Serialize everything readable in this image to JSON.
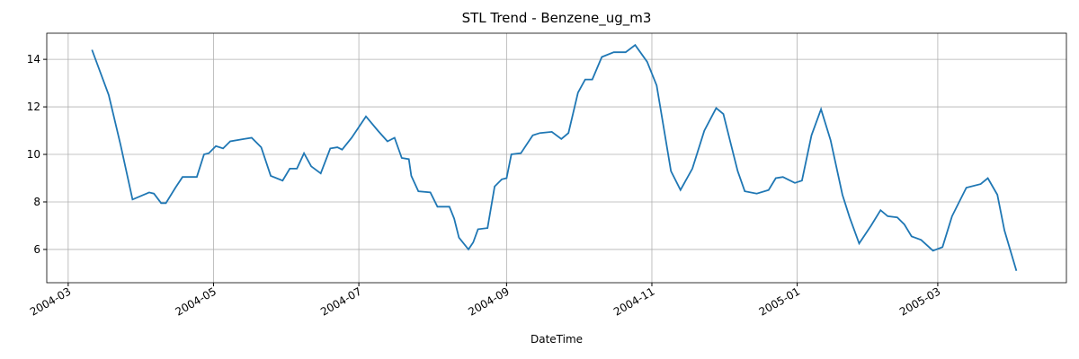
{
  "chart_data": {
    "type": "line",
    "title": "STL Trend - Benzene_ug_m3",
    "xlabel": "DateTime",
    "x": [
      "2004-03-11",
      "2004-03-18",
      "2004-03-23",
      "2004-03-28",
      "2004-04-04",
      "2004-04-06",
      "2004-04-09",
      "2004-04-11",
      "2004-04-15",
      "2004-04-18",
      "2004-04-24",
      "2004-04-27",
      "2004-04-29",
      "2004-05-02",
      "2004-05-05",
      "2004-05-08",
      "2004-05-14",
      "2004-05-17",
      "2004-05-21",
      "2004-05-25",
      "2004-05-30",
      "2004-06-02",
      "2004-06-05",
      "2004-06-08",
      "2004-06-11",
      "2004-06-15",
      "2004-06-19",
      "2004-06-22",
      "2004-06-24",
      "2004-06-28",
      "2004-07-04",
      "2004-07-09",
      "2004-07-13",
      "2004-07-16",
      "2004-07-19",
      "2004-07-22",
      "2004-07-23",
      "2004-07-26",
      "2004-07-31",
      "2004-08-03",
      "2004-08-08",
      "2004-08-10",
      "2004-08-12",
      "2004-08-16",
      "2004-08-18",
      "2004-08-20",
      "2004-08-24",
      "2004-08-27",
      "2004-08-30",
      "2004-09-01",
      "2004-09-03",
      "2004-09-07",
      "2004-09-12",
      "2004-09-15",
      "2004-09-20",
      "2004-09-24",
      "2004-09-27",
      "2004-10-01",
      "2004-10-04",
      "2004-10-07",
      "2004-10-11",
      "2004-10-16",
      "2004-10-21",
      "2004-10-25",
      "2004-10-30",
      "2004-11-03",
      "2004-11-05",
      "2004-11-09",
      "2004-11-13",
      "2004-11-18",
      "2004-11-23",
      "2004-11-28",
      "2004-12-01",
      "2004-12-04",
      "2004-12-07",
      "2004-12-10",
      "2004-12-15",
      "2004-12-20",
      "2004-12-23",
      "2004-12-26",
      "2004-12-29",
      "2004-12-31",
      "2005-01-03",
      "2005-01-07",
      "2005-01-11",
      "2005-01-15",
      "2005-01-20",
      "2005-01-23",
      "2005-01-27",
      "2005-02-01",
      "2005-02-05",
      "2005-02-08",
      "2005-02-12",
      "2005-02-15",
      "2005-02-18",
      "2005-02-22",
      "2005-02-27",
      "2005-03-03",
      "2005-03-07",
      "2005-03-13",
      "2005-03-19",
      "2005-03-22",
      "2005-03-26",
      "2005-03-29",
      "2005-04-03"
    ],
    "series": [
      {
        "name": "trend",
        "color": "#1f77b4",
        "values": [
          14.4,
          12.5,
          10.4,
          8.1,
          8.4,
          8.35,
          7.95,
          7.95,
          8.6,
          9.05,
          9.05,
          10.0,
          10.05,
          10.35,
          10.25,
          10.55,
          10.65,
          10.7,
          10.3,
          9.1,
          8.9,
          9.4,
          9.4,
          10.05,
          9.5,
          9.2,
          10.25,
          10.3,
          10.2,
          10.7,
          11.6,
          11.0,
          10.55,
          10.7,
          9.85,
          9.8,
          9.1,
          8.45,
          8.4,
          7.8,
          7.8,
          7.3,
          6.5,
          6.0,
          6.3,
          6.85,
          6.9,
          8.65,
          8.95,
          9.0,
          10.0,
          10.05,
          10.8,
          10.9,
          10.95,
          10.65,
          10.9,
          12.6,
          13.15,
          13.15,
          14.1,
          14.3,
          14.3,
          14.6,
          13.9,
          12.9,
          11.7,
          9.3,
          8.5,
          9.4,
          11.0,
          11.95,
          11.7,
          10.5,
          9.3,
          8.45,
          8.35,
          8.5,
          9.0,
          9.05,
          8.9,
          8.8,
          8.9,
          10.8,
          11.9,
          10.6,
          8.3,
          7.35,
          6.25,
          7.0,
          7.65,
          7.4,
          7.35,
          7.05,
          6.55,
          6.4,
          5.95,
          6.1,
          7.4,
          8.6,
          8.75,
          9.0,
          8.3,
          6.8,
          5.1
        ]
      }
    ],
    "xlim": [
      "2004-02-21",
      "2005-04-24"
    ],
    "xticks": [
      "2004-03",
      "2004-05",
      "2004-07",
      "2004-09",
      "2004-11",
      "2005-01",
      "2005-03"
    ],
    "ylim": [
      4.6,
      15.1
    ],
    "yticks": [
      6,
      8,
      10,
      12,
      14
    ],
    "grid": true
  }
}
